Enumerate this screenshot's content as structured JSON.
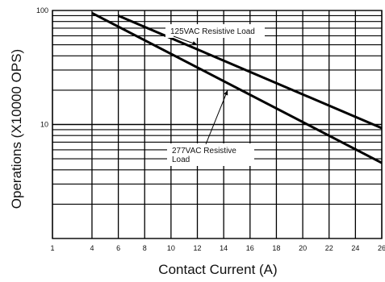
{
  "chart_data": {
    "type": "line",
    "xlabel": "Contact Current (A)",
    "ylabel": "Operations (X10000 OPS)",
    "x_tick_labels": [
      "1",
      "4",
      "6",
      "8",
      "10",
      "12",
      "14",
      "16",
      "18",
      "20",
      "22",
      "24",
      "26"
    ],
    "x_ticks": [
      1,
      4,
      6,
      8,
      10,
      12,
      14,
      16,
      18,
      20,
      22,
      24,
      26
    ],
    "y_tick_labels": [
      "100",
      "10"
    ],
    "y_ticks": [
      100,
      10
    ],
    "xlim": [
      1,
      26
    ],
    "ylim": [
      1,
      100
    ],
    "y_scale": "log",
    "grid": true,
    "series": [
      {
        "x": [
          6,
          26
        ],
        "y": [
          90,
          9.3
        ]
      },
      {
        "x": [
          4,
          26
        ],
        "y": [
          95,
          4.6
        ]
      }
    ],
    "annotations": [
      {
        "lines": [
          "125VAC Resistive Load"
        ],
        "target": {
          "x": 12,
          "y": 50
        }
      },
      {
        "lines": [
          "277VAC Resistive",
          "Load"
        ],
        "target": {
          "x": 14.3,
          "y": 20
        }
      }
    ]
  }
}
